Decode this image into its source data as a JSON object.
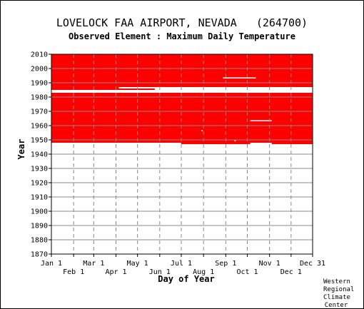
{
  "header": {
    "title": "LOVELOCK FAA AIRPORT, NEVADA   (264700)",
    "subtitle": "Observed Element : Maximum Daily Temperature"
  },
  "credit": [
    "Western",
    "Regional",
    "Climate",
    "Center"
  ],
  "colors": {
    "data": "#ff0000",
    "grid": "#888888",
    "axis": "#000000",
    "background": "#ffffff"
  },
  "chart_data": {
    "type": "heatmap",
    "xlabel": "Day of Year",
    "ylabel": "Year",
    "x_ticks_top": [
      "Jan 1",
      "Mar 1",
      "May 1",
      "Jul 1",
      "Sep 1",
      "Nov 1",
      "Dec 31"
    ],
    "x_ticks_bottom": [
      "Feb 1",
      "Apr 1",
      "Jun 1",
      "Aug 1",
      "Oct 1",
      "Dec 1"
    ],
    "x_top_days": [
      1,
      60,
      121,
      182,
      244,
      305,
      365
    ],
    "x_bottom_days": [
      32,
      91,
      152,
      213,
      274,
      335
    ],
    "xlim": [
      1,
      365
    ],
    "ylim": [
      1870,
      2010
    ],
    "y_ticks": [
      1870,
      1880,
      1890,
      1900,
      1910,
      1920,
      1930,
      1940,
      1950,
      1960,
      1970,
      1980,
      1990,
      2000,
      2010
    ],
    "grid": true,
    "x_gridline_days": [
      32,
      60,
      91,
      121,
      152,
      182,
      213,
      244,
      274,
      305,
      335
    ],
    "data_present": [
      {
        "start_day": 1,
        "end_day": 365,
        "start_year": 1987,
        "end_year": 2010
      },
      {
        "start_day": 1,
        "end_day": 95,
        "start_year": 1948,
        "end_year": 1983
      },
      {
        "start_day": 95,
        "end_day": 365,
        "start_year": 1948,
        "end_year": 1983
      },
      {
        "start_day": 182,
        "end_day": 278,
        "start_year": 1947,
        "end_year": 1948
      },
      {
        "start_day": 308,
        "end_day": 365,
        "start_year": 1947,
        "end_year": 1948
      },
      {
        "start_day": 278,
        "end_day": 308,
        "start_year": 1948,
        "end_year": 1949
      },
      {
        "start_day": 1,
        "end_day": 95,
        "start_year": 1985,
        "end_year": 1987
      },
      {
        "start_day": 95,
        "end_day": 145,
        "start_year": 1985,
        "end_year": 1986
      }
    ],
    "data_missing": [
      {
        "start_day": 240,
        "end_day": 286,
        "start_year": 1993,
        "end_year": 1994
      },
      {
        "start_day": 278,
        "end_day": 308,
        "start_year": 1963,
        "end_year": 1964
      },
      {
        "start_day": 210,
        "end_day": 212,
        "start_year": 1956,
        "end_year": 1957
      },
      {
        "start_day": 256,
        "end_day": 258,
        "start_year": 1949,
        "end_year": 1950
      }
    ]
  }
}
